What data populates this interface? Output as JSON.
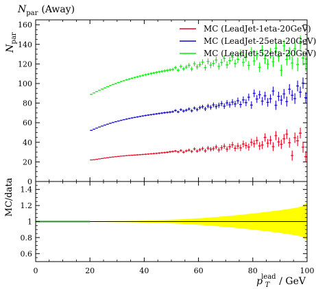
{
  "chart_data": [
    {
      "type": "scatter",
      "title_symbol": "N",
      "title_sub": "par",
      "title_rest": "(Away)",
      "ylabel_symbol": "N",
      "ylabel_sub": "par",
      "xlim": [
        0,
        100
      ],
      "ylim": [
        0,
        165
      ],
      "yticks": [
        0,
        20,
        40,
        60,
        80,
        100,
        120,
        140,
        160
      ],
      "xticks": [
        0,
        20,
        40,
        60,
        80,
        100
      ],
      "legend_position": "top-right",
      "series": [
        {
          "name": "MC (LeadJet-1eta-20GeV)",
          "color": "#e8001c",
          "x": [
            20.5,
            21.5,
            22.5,
            23.5,
            24.5,
            25.5,
            26.5,
            27.5,
            28.5,
            29.5,
            30.5,
            31.5,
            32.5,
            33.5,
            34.5,
            35.5,
            36.5,
            37.5,
            38.5,
            39.5,
            40.5,
            41.5,
            42.5,
            43.5,
            44.5,
            45.5,
            46.5,
            47.5,
            48.5,
            49.5,
            50.5,
            51.5,
            52.5,
            53.5,
            54.5,
            55.5,
            56.5,
            57.5,
            58.5,
            59.5,
            60.5,
            61.5,
            62.5,
            63.5,
            64.5,
            65.5,
            66.5,
            67.5,
            68.5,
            69.5,
            70.5,
            71.5,
            72.5,
            73.5,
            74.5,
            75.5,
            76.5,
            77.5,
            78.5,
            79.5,
            80.5,
            81.5,
            82.5,
            83.5,
            84.5,
            85.5,
            86.5,
            87.5,
            88.5,
            89.5,
            90.5,
            91.5,
            92.5,
            93.5,
            94.5,
            95.5,
            96.5,
            97.5,
            98.5,
            99.5
          ],
          "y": [
            22.0,
            22.2,
            22.6,
            23.1,
            23.5,
            23.9,
            24.3,
            24.7,
            25.0,
            25.3,
            25.6,
            25.9,
            26.1,
            26.4,
            26.6,
            26.8,
            27.0,
            27.2,
            27.4,
            27.6,
            27.8,
            28.0,
            28.3,
            28.5,
            28.7,
            29.0,
            29.3,
            29.5,
            29.8,
            30.3,
            30.6,
            31.1,
            30.2,
            31.6,
            29.9,
            31.2,
            32.0,
            30.6,
            33.2,
            31.0,
            32.4,
            33.6,
            31.3,
            34.1,
            32.9,
            33.5,
            35.2,
            32.2,
            34.4,
            36.0,
            33.0,
            35.5,
            37.4,
            33.9,
            36.2,
            34.3,
            38.3,
            36.7,
            35.1,
            40.0,
            38.5,
            41.8,
            36.3,
            37.2,
            45.0,
            39.1,
            42.2,
            35.6,
            46.8,
            40.4,
            38.0,
            43.5,
            48.3,
            39.6,
            26.5,
            44.7,
            41.5,
            49.4,
            35.0,
            25.3
          ],
          "yerr": [
            0.3,
            0.3,
            0.3,
            0.3,
            0.3,
            0.3,
            0.3,
            0.4,
            0.4,
            0.4,
            0.4,
            0.4,
            0.4,
            0.5,
            0.5,
            0.5,
            0.5,
            0.6,
            0.6,
            0.6,
            0.7,
            0.7,
            0.7,
            0.8,
            0.8,
            0.9,
            0.9,
            1.0,
            1.0,
            1.1,
            1.1,
            1.2,
            1.2,
            1.3,
            1.4,
            1.4,
            1.5,
            1.6,
            1.6,
            1.7,
            1.8,
            1.9,
            2.0,
            2.1,
            2.2,
            2.3,
            2.4,
            2.5,
            2.6,
            2.7,
            2.8,
            2.9,
            3.0,
            3.1,
            3.2,
            3.3,
            3.4,
            3.5,
            3.6,
            3.7,
            3.8,
            3.9,
            4.0,
            4.1,
            4.2,
            4.3,
            4.4,
            4.5,
            4.6,
            4.7,
            4.8,
            4.9,
            5.0,
            5.1,
            5.2,
            5.3,
            5.4,
            5.5,
            5.6,
            5.7
          ]
        },
        {
          "name": "MC (LeadJet-25eta-20GeV)",
          "color": "#0d00d0",
          "x": [
            20.5,
            21.5,
            22.5,
            23.5,
            24.5,
            25.5,
            26.5,
            27.5,
            28.5,
            29.5,
            30.5,
            31.5,
            32.5,
            33.5,
            34.5,
            35.5,
            36.5,
            37.5,
            38.5,
            39.5,
            40.5,
            41.5,
            42.5,
            43.5,
            44.5,
            45.5,
            46.5,
            47.5,
            48.5,
            49.5,
            50.5,
            51.5,
            52.5,
            53.5,
            54.5,
            55.5,
            56.5,
            57.5,
            58.5,
            59.5,
            60.5,
            61.5,
            62.5,
            63.5,
            64.5,
            65.5,
            66.5,
            67.5,
            68.5,
            69.5,
            70.5,
            71.5,
            72.5,
            73.5,
            74.5,
            75.5,
            76.5,
            77.5,
            78.5,
            79.5,
            80.5,
            81.5,
            82.5,
            83.5,
            84.5,
            85.5,
            86.5,
            87.5,
            88.5,
            89.5,
            90.5,
            91.5,
            92.5,
            93.5,
            94.5,
            95.5,
            96.5,
            97.5,
            98.5,
            99.5
          ],
          "y": [
            52.2,
            53.4,
            54.5,
            55.6,
            56.6,
            57.6,
            58.5,
            59.4,
            60.2,
            61.0,
            61.7,
            62.4,
            63.1,
            63.7,
            64.3,
            64.9,
            65.4,
            65.9,
            66.4,
            66.9,
            67.4,
            67.8,
            68.2,
            68.6,
            69.0,
            69.4,
            69.8,
            70.2,
            70.5,
            70.8,
            71.2,
            72.5,
            71.0,
            73.3,
            71.9,
            72.8,
            74.0,
            72.2,
            74.9,
            73.4,
            75.4,
            76.3,
            74.1,
            77.0,
            75.6,
            78.2,
            76.4,
            77.8,
            79.5,
            76.9,
            80.2,
            78.3,
            81.0,
            79.1,
            82.4,
            78.6,
            83.3,
            80.5,
            86.0,
            78.0,
            90.0,
            84.2,
            88.6,
            82.0,
            87.4,
            80.8,
            84.5,
            92.3,
            77.8,
            86.9,
            83.1,
            89.4,
            81.6,
            94.2,
            88.0,
            84.6,
            97.5,
            91.2,
            100.4,
            85.5
          ],
          "yerr": [
            0.4,
            0.4,
            0.4,
            0.4,
            0.4,
            0.4,
            0.4,
            0.5,
            0.5,
            0.5,
            0.5,
            0.5,
            0.5,
            0.6,
            0.6,
            0.6,
            0.6,
            0.7,
            0.7,
            0.7,
            0.8,
            0.8,
            0.8,
            0.9,
            0.9,
            1.0,
            1.0,
            1.1,
            1.1,
            1.2,
            1.2,
            1.3,
            1.3,
            1.4,
            1.5,
            1.5,
            1.6,
            1.7,
            1.7,
            1.8,
            1.9,
            2.0,
            2.1,
            2.2,
            2.3,
            2.4,
            2.5,
            2.6,
            2.7,
            2.8,
            2.9,
            3.0,
            3.1,
            3.2,
            3.3,
            3.4,
            3.5,
            3.6,
            3.7,
            3.8,
            3.9,
            4.0,
            4.1,
            4.2,
            4.3,
            4.4,
            4.5,
            4.6,
            4.7,
            4.8,
            4.9,
            5.0,
            5.1,
            5.2,
            5.3,
            5.4,
            5.5,
            5.6,
            5.7,
            5.8
          ]
        },
        {
          "name": "MC (LeadJet-52eta-20GeV)",
          "color": "#00ed00",
          "x": [
            20.5,
            21.5,
            22.5,
            23.5,
            24.5,
            25.5,
            26.5,
            27.5,
            28.5,
            29.5,
            30.5,
            31.5,
            32.5,
            33.5,
            34.5,
            35.5,
            36.5,
            37.5,
            38.5,
            39.5,
            40.5,
            41.5,
            42.5,
            43.5,
            44.5,
            45.5,
            46.5,
            47.5,
            48.5,
            49.5,
            50.5,
            51.5,
            52.5,
            53.5,
            54.5,
            55.5,
            56.5,
            57.5,
            58.5,
            59.5,
            60.5,
            61.5,
            62.5,
            63.5,
            64.5,
            65.5,
            66.5,
            67.5,
            68.5,
            69.5,
            70.5,
            71.5,
            72.5,
            73.5,
            74.5,
            75.5,
            76.5,
            77.5,
            78.5,
            79.5,
            80.5,
            81.5,
            82.5,
            83.5,
            84.5,
            85.5,
            86.5,
            87.5,
            88.5,
            89.5,
            90.5,
            91.5,
            92.5,
            93.5,
            94.5,
            95.5,
            96.5,
            97.5,
            98.5,
            99.5
          ],
          "y": [
            89.0,
            90.4,
            91.8,
            93.1,
            94.4,
            95.6,
            96.8,
            97.9,
            99.0,
            100.0,
            101.0,
            102.0,
            102.9,
            103.8,
            104.6,
            105.4,
            106.2,
            106.9,
            107.6,
            108.3,
            109.0,
            109.6,
            110.2,
            110.8,
            111.4,
            111.9,
            112.4,
            112.9,
            113.4,
            113.9,
            114.3,
            116.2,
            113.6,
            117.4,
            115.0,
            116.8,
            118.6,
            114.8,
            120.2,
            117.0,
            119.4,
            121.8,
            116.2,
            122.6,
            118.8,
            120.5,
            124.0,
            117.5,
            121.5,
            125.6,
            119.0,
            123.4,
            127.0,
            120.4,
            124.8,
            130.5,
            121.6,
            126.8,
            118.5,
            132.4,
            123.0,
            128.7,
            116.6,
            134.2,
            125.4,
            119.8,
            131.0,
            122.3,
            136.0,
            127.6,
            113.4,
            138.5,
            124.7,
            130.8,
            121.0,
            135.5,
            119.5,
            142.0,
            126.0,
            120.0
          ],
          "yerr": [
            0.5,
            0.5,
            0.5,
            0.5,
            0.5,
            0.5,
            0.6,
            0.6,
            0.6,
            0.6,
            0.7,
            0.7,
            0.7,
            0.8,
            0.8,
            0.8,
            0.9,
            0.9,
            1.0,
            1.0,
            1.1,
            1.1,
            1.2,
            1.2,
            1.3,
            1.3,
            1.4,
            1.5,
            1.5,
            1.6,
            1.7,
            1.8,
            1.9,
            2.0,
            2.1,
            2.2,
            2.3,
            2.4,
            2.5,
            2.6,
            2.7,
            2.8,
            2.9,
            3.0,
            3.1,
            3.2,
            3.3,
            3.4,
            3.5,
            3.6,
            3.7,
            3.8,
            3.9,
            4.0,
            4.1,
            4.2,
            4.3,
            4.4,
            4.5,
            4.6,
            4.7,
            4.8,
            4.9,
            5.0,
            5.1,
            5.2,
            5.3,
            5.4,
            5.5,
            5.6,
            5.8,
            6.0,
            6.2,
            6.4,
            6.6,
            6.8,
            7.0,
            7.2,
            7.4,
            7.6
          ]
        }
      ]
    },
    {
      "type": "area",
      "ylabel": "MC/data",
      "xlim": [
        0,
        100
      ],
      "ylim": [
        0.5,
        1.5
      ],
      "yticks": [
        "0.6",
        "0.8",
        "1",
        "1.2",
        "1.4"
      ],
      "xticks": [
        "0",
        "20",
        "40",
        "60",
        "80",
        "100"
      ],
      "xlabel_symbol": "p",
      "xlabel_sub": "T",
      "xlabel_sup": "lead",
      "xlabel_unit": "/ GeV",
      "band_color": "#ffff00",
      "line_color": "#2a8c2a",
      "reference_value": 1,
      "band_x": [
        20,
        21,
        22,
        23,
        24,
        25,
        26,
        27,
        28,
        29,
        30,
        31,
        32,
        33,
        34,
        35,
        36,
        37,
        38,
        39,
        40,
        41,
        42,
        43,
        44,
        45,
        46,
        47,
        48,
        49,
        50,
        51,
        52,
        53,
        54,
        55,
        56,
        57,
        58,
        59,
        60,
        61,
        62,
        63,
        64,
        65,
        66,
        67,
        68,
        69,
        70,
        71,
        72,
        73,
        74,
        75,
        76,
        77,
        78,
        79,
        80,
        81,
        82,
        83,
        84,
        85,
        86,
        87,
        88,
        89,
        90,
        91,
        92,
        93,
        94,
        95,
        96,
        97,
        98,
        99,
        100
      ],
      "band_halfwidth": [
        0.004,
        0.004,
        0.004,
        0.005,
        0.005,
        0.005,
        0.005,
        0.006,
        0.006,
        0.006,
        0.007,
        0.007,
        0.008,
        0.008,
        0.009,
        0.009,
        0.01,
        0.01,
        0.011,
        0.012,
        0.012,
        0.013,
        0.014,
        0.015,
        0.016,
        0.017,
        0.018,
        0.019,
        0.02,
        0.021,
        0.023,
        0.024,
        0.026,
        0.027,
        0.029,
        0.031,
        0.033,
        0.034,
        0.036,
        0.039,
        0.041,
        0.043,
        0.045,
        0.048,
        0.05,
        0.053,
        0.055,
        0.058,
        0.061,
        0.064,
        0.067,
        0.07,
        0.073,
        0.076,
        0.079,
        0.083,
        0.086,
        0.09,
        0.093,
        0.097,
        0.1,
        0.104,
        0.108,
        0.112,
        0.116,
        0.12,
        0.124,
        0.128,
        0.132,
        0.137,
        0.141,
        0.146,
        0.151,
        0.156,
        0.161,
        0.167,
        0.173,
        0.18,
        0.19,
        0.21,
        0.24
      ],
      "line_x_range": [
        0,
        20
      ]
    }
  ]
}
